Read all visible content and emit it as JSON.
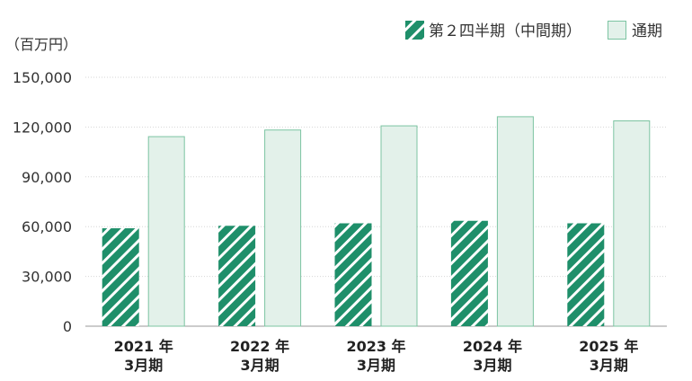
{
  "chart_data": {
    "type": "bar",
    "unit_label": "（百万円）",
    "categories": [
      [
        "2021 年",
        "3月期"
      ],
      [
        "2022 年",
        "3月期"
      ],
      [
        "2023 年",
        "3月期"
      ],
      [
        "2024 年",
        "3月期"
      ],
      [
        "2025 年",
        "3月期"
      ]
    ],
    "series": [
      {
        "name": "第２四半期（中間期）",
        "pattern": "diagonal-stripes",
        "color": "#1f8f6a",
        "values": [
          59000,
          60500,
          62000,
          63500,
          62000
        ]
      },
      {
        "name": "通期",
        "pattern": "solid",
        "color": "#e3f1ea",
        "stroke": "#7cc4a2",
        "values": [
          114500,
          118500,
          121000,
          126500,
          124000
        ]
      }
    ],
    "ylim": [
      0,
      150000
    ],
    "yticks": [
      0,
      30000,
      60000,
      90000,
      120000,
      150000
    ],
    "ytick_labels": [
      "0",
      "30,000",
      "60,000",
      "90,000",
      "120,000",
      "150,000"
    ],
    "grid": true,
    "legend_position": "top-right",
    "title": "",
    "xlabel": "",
    "ylabel": ""
  }
}
